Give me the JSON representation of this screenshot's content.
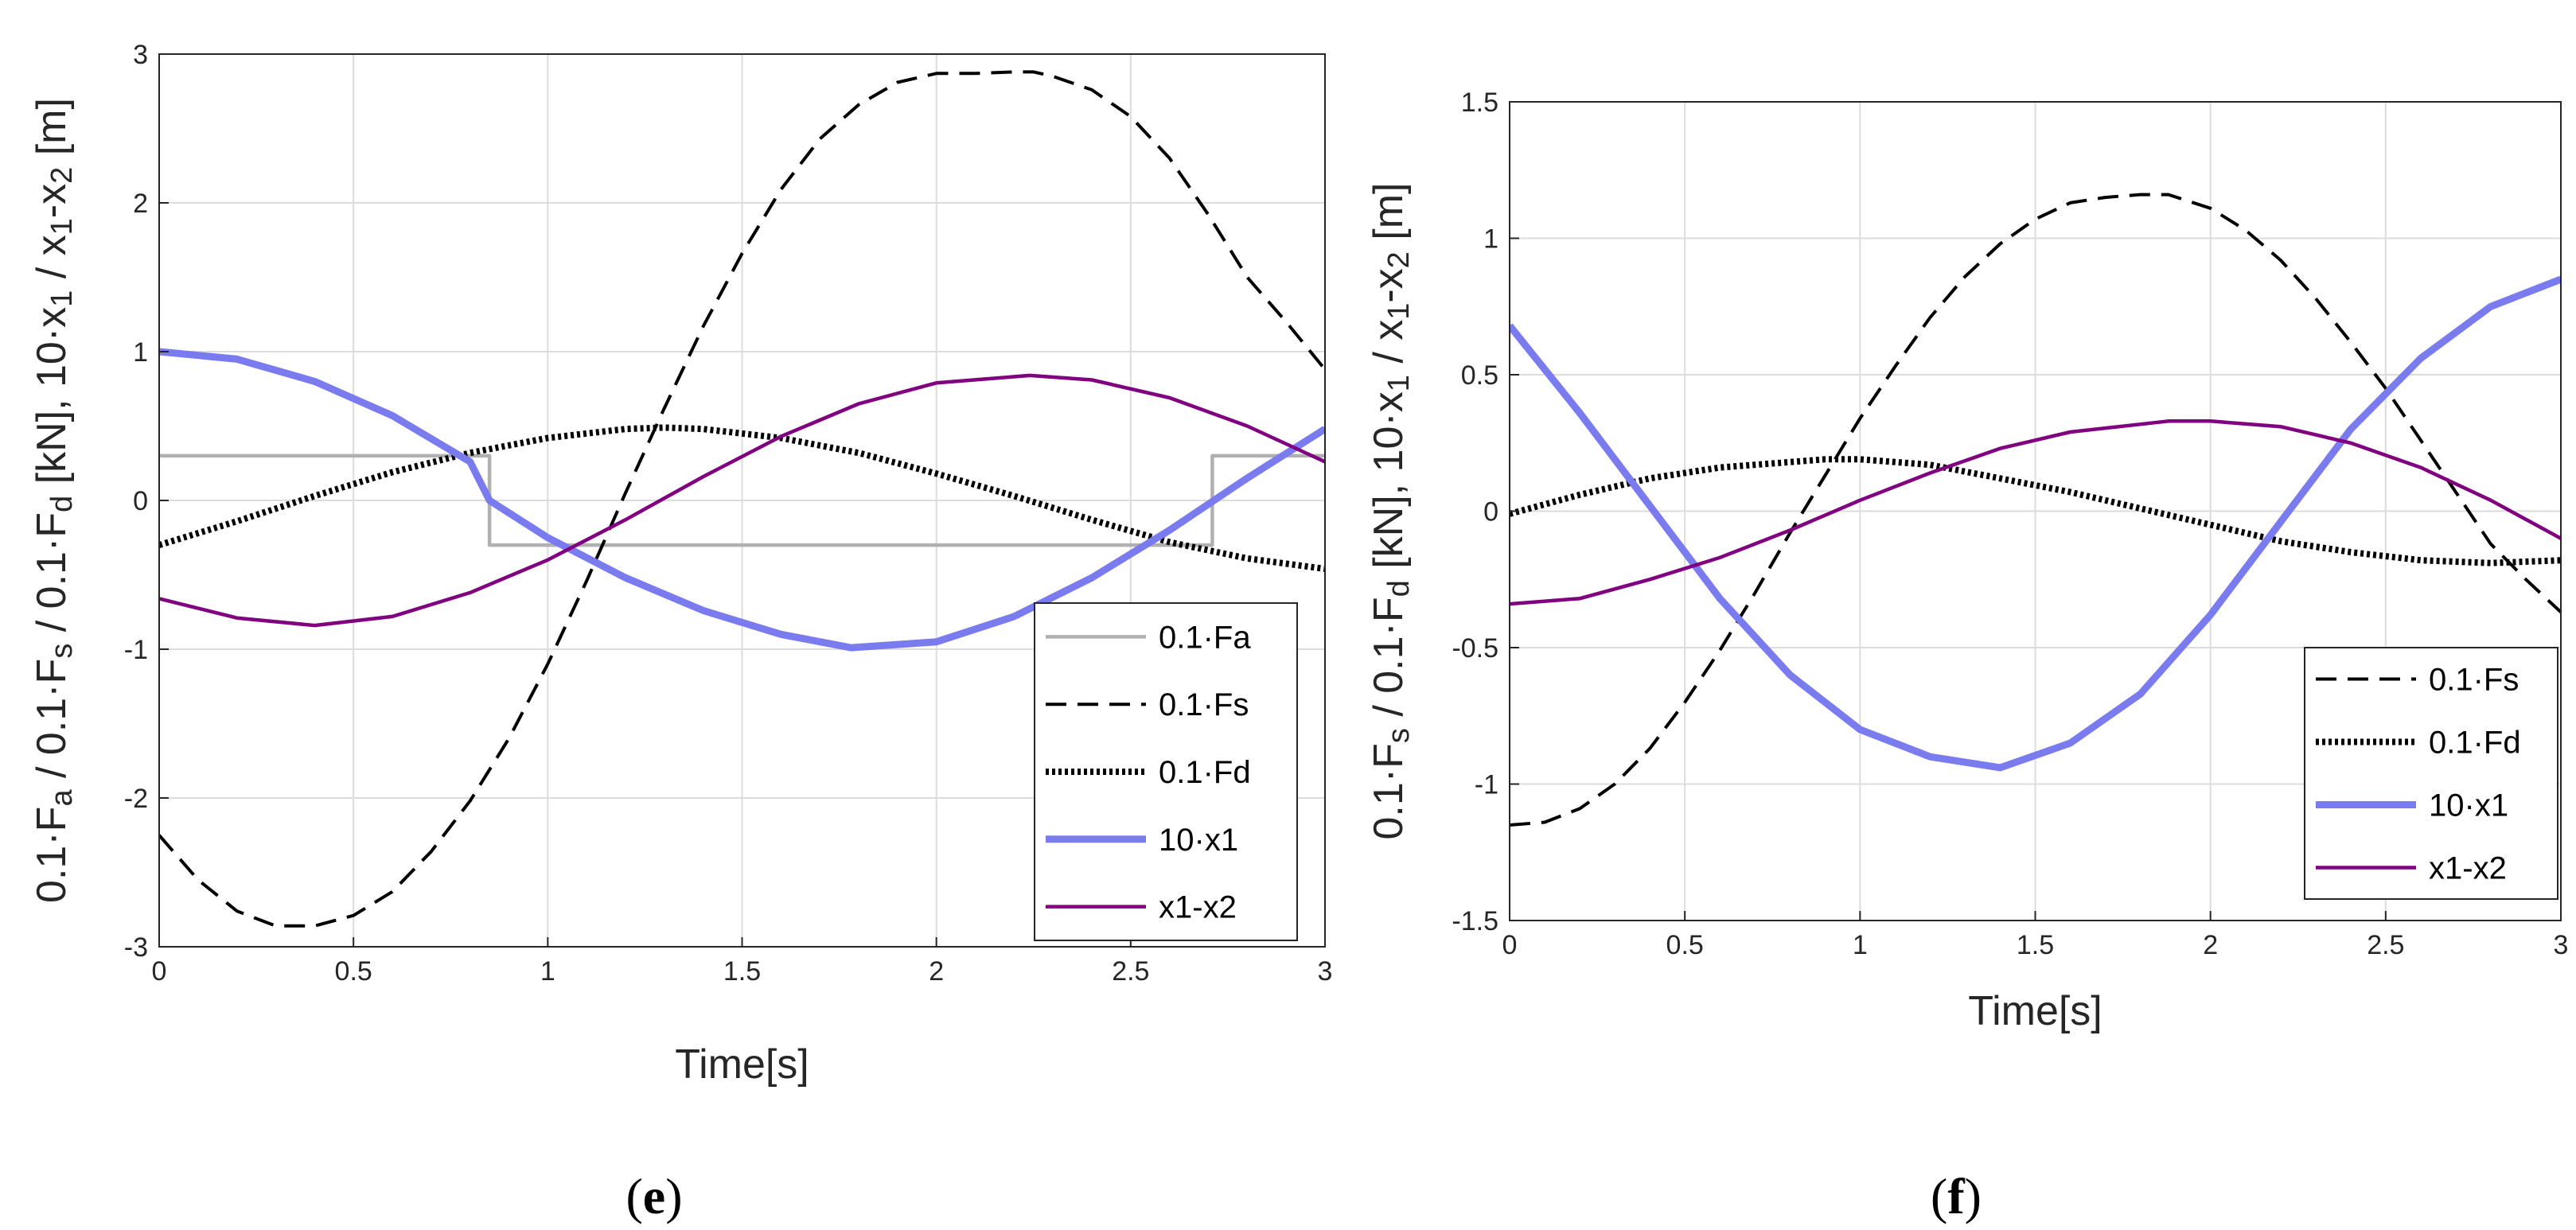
{
  "chart_data": [
    {
      "type": "line",
      "caption": "e",
      "xlabel": "Time[s]",
      "ylabel": "0.1·Fa / 0.1·Fs / 0.1·Fd [kN], 10·x1 / x1-x2 [m]",
      "ylabel_parts": [
        "0.1",
        "·F",
        "a",
        " / 0.1",
        "·F",
        "s",
        " / 0.1",
        "·F",
        "d",
        " [kN], 10",
        "·x",
        "1",
        " / x",
        "1",
        "-x",
        "2",
        " [m]"
      ],
      "xlim": [
        0,
        3
      ],
      "ylim": [
        -3,
        3
      ],
      "xticks": [
        0,
        0.5,
        1,
        1.5,
        2,
        2.5,
        3
      ],
      "xtick_labels": [
        "0",
        "0.5",
        "1",
        "1.5",
        "2",
        "2.5",
        "3"
      ],
      "yticks": [
        -3,
        -2,
        -1,
        0,
        1,
        2,
        3
      ],
      "ytick_labels": [
        "-3",
        "-2",
        "-1",
        "0",
        "1",
        "2",
        "3"
      ],
      "grid": true,
      "legend": "bottom-right",
      "series": [
        {
          "name": "0.1·Fa",
          "label": "0.1·Fa",
          "color": "#b0b0b0",
          "style": "solid",
          "x": [
            0,
            0.85,
            0.85,
            2.71,
            2.71,
            3.0
          ],
          "y": [
            0.3,
            0.3,
            -0.3,
            -0.3,
            0.3,
            0.3
          ]
        },
        {
          "name": "0.1·Fs",
          "label": "0.1·Fs",
          "color": "#000000",
          "style": "dashed",
          "x": [
            0,
            0.1,
            0.2,
            0.3,
            0.4,
            0.5,
            0.6,
            0.7,
            0.8,
            0.9,
            1.0,
            1.1,
            1.2,
            1.3,
            1.4,
            1.5,
            1.6,
            1.7,
            1.8,
            1.9,
            2.0,
            2.1,
            2.2,
            2.25,
            2.3,
            2.4,
            2.5,
            2.6,
            2.7,
            2.8,
            2.9,
            3.0
          ],
          "y": [
            -2.25,
            -2.55,
            -2.76,
            -2.86,
            -2.86,
            -2.79,
            -2.63,
            -2.36,
            -2.02,
            -1.6,
            -1.1,
            -0.54,
            0.05,
            0.62,
            1.17,
            1.66,
            2.09,
            2.43,
            2.66,
            2.81,
            2.87,
            2.87,
            2.88,
            2.88,
            2.85,
            2.76,
            2.58,
            2.3,
            1.92,
            1.5,
            1.2,
            0.88
          ]
        },
        {
          "name": "0.1·Fd",
          "label": "0.1·Fd",
          "color": "#000000",
          "style": "dotted",
          "x": [
            0,
            0.2,
            0.4,
            0.6,
            0.8,
            1.0,
            1.2,
            1.3,
            1.4,
            1.6,
            1.8,
            2.0,
            2.2,
            2.4,
            2.6,
            2.8,
            3.0
          ],
          "y": [
            -0.3,
            -0.14,
            0.03,
            0.19,
            0.32,
            0.42,
            0.48,
            0.49,
            0.48,
            0.42,
            0.32,
            0.18,
            0.03,
            -0.13,
            -0.28,
            -0.39,
            -0.46
          ]
        },
        {
          "name": "10·x1",
          "label": "10·x1",
          "color": "#7b7bf0",
          "style": "thick",
          "x": [
            0,
            0.2,
            0.4,
            0.6,
            0.8,
            0.85,
            1.0,
            1.2,
            1.4,
            1.6,
            1.78,
            2.0,
            2.2,
            2.4,
            2.6,
            2.8,
            3.0
          ],
          "y": [
            1.0,
            0.95,
            0.8,
            0.57,
            0.26,
            0.0,
            -0.25,
            -0.52,
            -0.74,
            -0.9,
            -0.99,
            -0.95,
            -0.78,
            -0.52,
            -0.2,
            0.15,
            0.48
          ]
        },
        {
          "name": "x1-x2",
          "label": "x1-x2",
          "color": "#800080",
          "style": "solid",
          "x": [
            0,
            0.2,
            0.4,
            0.6,
            0.8,
            1.0,
            1.2,
            1.4,
            1.6,
            1.8,
            2.0,
            2.24,
            2.4,
            2.6,
            2.8,
            3.0
          ],
          "y": [
            -0.66,
            -0.79,
            -0.84,
            -0.78,
            -0.62,
            -0.4,
            -0.13,
            0.16,
            0.43,
            0.65,
            0.79,
            0.84,
            0.81,
            0.69,
            0.5,
            0.26
          ]
        }
      ]
    },
    {
      "type": "line",
      "caption": "f",
      "xlabel": "Time[s]",
      "ylabel": "0.1·Fs / 0.1·Fd [kN], 10·x1 / x1-x2 [m]",
      "ylabel_parts": [
        "0.1",
        "·F",
        "s",
        " / 0.1",
        "·F",
        "d",
        " [kN], 10",
        "·x",
        "1",
        " / x",
        "1",
        "-x",
        "2",
        " [m]"
      ],
      "xlim": [
        0,
        3
      ],
      "ylim": [
        -1.5,
        1.5
      ],
      "xticks": [
        0,
        0.5,
        1,
        1.5,
        2,
        2.5,
        3
      ],
      "xtick_labels": [
        "0",
        "0.5",
        "1",
        "1.5",
        "2",
        "2.5",
        "3"
      ],
      "yticks": [
        -1.5,
        -1,
        -0.5,
        0,
        0.5,
        1,
        1.5
      ],
      "ytick_labels": [
        "-1.5",
        "-1",
        "-0.5",
        "0",
        "0.5",
        "1",
        "1.5"
      ],
      "grid": true,
      "legend": "bottom-right",
      "series": [
        {
          "name": "0.1·Fs",
          "label": "0.1·Fs",
          "color": "#000000",
          "style": "dashed",
          "x": [
            0,
            0.1,
            0.2,
            0.3,
            0.4,
            0.5,
            0.6,
            0.7,
            0.8,
            0.9,
            1.0,
            1.1,
            1.2,
            1.3,
            1.4,
            1.5,
            1.6,
            1.7,
            1.8,
            1.88,
            2.0,
            2.1,
            2.2,
            2.3,
            2.4,
            2.5,
            2.6,
            2.7,
            2.8,
            2.9,
            3.0
          ],
          "y": [
            -1.15,
            -1.14,
            -1.09,
            -1.0,
            -0.87,
            -0.7,
            -0.51,
            -0.3,
            -0.08,
            0.13,
            0.34,
            0.53,
            0.71,
            0.86,
            0.98,
            1.07,
            1.13,
            1.15,
            1.16,
            1.16,
            1.11,
            1.03,
            0.92,
            0.78,
            0.62,
            0.45,
            0.26,
            0.07,
            -0.12,
            -0.25,
            -0.37
          ]
        },
        {
          "name": "0.1·Fd",
          "label": "0.1·Fd",
          "color": "#000000",
          "style": "dotted",
          "x": [
            0,
            0.2,
            0.4,
            0.6,
            0.8,
            0.9,
            1.0,
            1.2,
            1.4,
            1.6,
            1.8,
            2.0,
            2.2,
            2.4,
            2.6,
            2.8,
            3.0
          ],
          "y": [
            -0.01,
            0.06,
            0.12,
            0.16,
            0.18,
            0.19,
            0.19,
            0.17,
            0.12,
            0.07,
            0.01,
            -0.05,
            -0.11,
            -0.15,
            -0.18,
            -0.19,
            -0.18
          ]
        },
        {
          "name": "10·x1",
          "label": "10·x1",
          "color": "#7b7bf0",
          "style": "thick",
          "x": [
            0,
            0.2,
            0.4,
            0.6,
            0.8,
            1.0,
            1.2,
            1.4,
            1.6,
            1.8,
            2.0,
            2.2,
            2.4,
            2.6,
            2.8,
            3.0
          ],
          "y": [
            0.68,
            0.36,
            0.02,
            -0.32,
            -0.6,
            -0.8,
            -0.9,
            -0.94,
            -0.85,
            -0.67,
            -0.38,
            -0.04,
            0.3,
            0.56,
            0.75,
            0.85
          ]
        },
        {
          "name": "x1-x2",
          "label": "x1-x2",
          "color": "#800080",
          "style": "solid",
          "x": [
            0,
            0.2,
            0.4,
            0.6,
            0.8,
            1.0,
            1.2,
            1.4,
            1.6,
            1.88,
            2.0,
            2.2,
            2.4,
            2.6,
            2.8,
            3.0
          ],
          "y": [
            -0.34,
            -0.32,
            -0.25,
            -0.17,
            -0.07,
            0.04,
            0.14,
            0.23,
            0.29,
            0.33,
            0.33,
            0.31,
            0.25,
            0.16,
            0.04,
            -0.1
          ]
        }
      ]
    }
  ]
}
